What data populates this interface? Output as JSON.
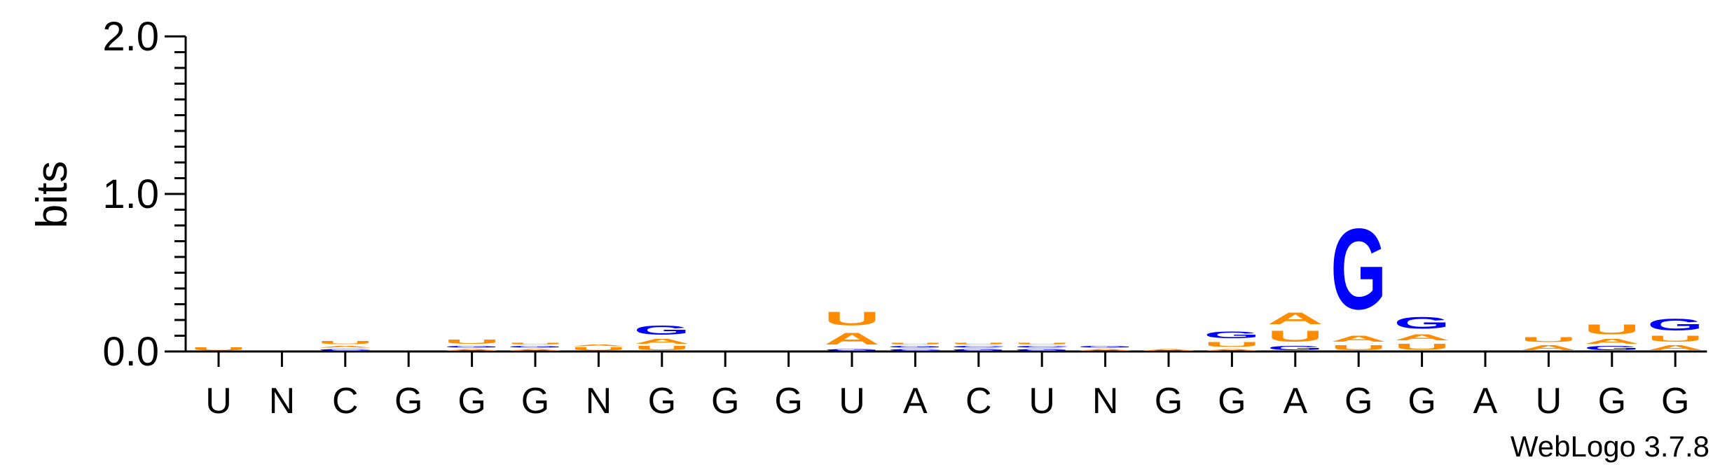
{
  "chart_data": {
    "type": "sequence-logo",
    "title": "",
    "ylabel": "bits",
    "xlabel": "",
    "ylim": [
      0,
      2.0
    ],
    "yticks": [
      {
        "value": 0.0,
        "label": "0.0"
      },
      {
        "value": 1.0,
        "label": "1.0"
      },
      {
        "value": 2.0,
        "label": "2.0"
      }
    ],
    "categories": [
      "U",
      "N",
      "C",
      "G",
      "G",
      "G",
      "N",
      "G",
      "G",
      "G",
      "U",
      "A",
      "C",
      "U",
      "N",
      "G",
      "G",
      "A",
      "G",
      "G",
      "A",
      "U",
      "G",
      "G"
    ],
    "colors": {
      "A": "#ff8c00",
      "U": "#ff8c00",
      "G": "#0000ff",
      "C": "#0000ff"
    },
    "stacks": [
      [
        [
          "U",
          0.03
        ]
      ],
      [],
      [
        [
          "C",
          0.02
        ],
        [
          "A",
          0.02
        ],
        [
          "U",
          0.03
        ]
      ],
      [],
      [
        [
          "A",
          0.02
        ],
        [
          "G",
          0.02
        ],
        [
          "U",
          0.04
        ]
      ],
      [
        [
          "A",
          0.02
        ],
        [
          "G",
          0.02
        ],
        [
          "U",
          0.02
        ]
      ],
      [
        [
          "U",
          0.03
        ],
        [
          "A",
          0.02
        ]
      ],
      [
        [
          "U",
          0.04
        ],
        [
          "A",
          0.05
        ],
        [
          "G",
          0.09
        ]
      ],
      [],
      [],
      [
        [
          "G",
          0.02
        ],
        [
          "A",
          0.12
        ],
        [
          "U",
          0.14
        ]
      ],
      [
        [
          "C",
          0.02
        ],
        [
          "G",
          0.02
        ],
        [
          "U",
          0.02
        ]
      ],
      [
        [
          "G",
          0.02
        ],
        [
          "C",
          0.02
        ],
        [
          "U",
          0.02
        ]
      ],
      [
        [
          "G",
          0.02
        ],
        [
          "C",
          0.02
        ],
        [
          "U",
          0.02
        ]
      ],
      [
        [
          "A",
          0.02
        ],
        [
          "G",
          0.02
        ]
      ],
      [
        [
          "A",
          0.02
        ]
      ],
      [
        [
          "A",
          0.02
        ],
        [
          "U",
          0.05
        ],
        [
          "G",
          0.07
        ]
      ],
      [
        [
          "G",
          0.04
        ],
        [
          "U",
          0.11
        ],
        [
          "A",
          0.12
        ]
      ],
      [
        [
          "U",
          0.05
        ],
        [
          "A",
          0.06
        ],
        [
          "G",
          0.82
        ]
      ],
      [
        [
          "U",
          0.06
        ],
        [
          "A",
          0.06
        ],
        [
          "G",
          0.12
        ]
      ],
      [],
      [
        [
          "A",
          0.05
        ],
        [
          "U",
          0.05
        ]
      ],
      [
        [
          "G",
          0.04
        ],
        [
          "A",
          0.05
        ],
        [
          "U",
          0.1
        ]
      ],
      [
        [
          "A",
          0.05
        ],
        [
          "U",
          0.06
        ],
        [
          "G",
          0.12
        ]
      ]
    ]
  },
  "credit": "WebLogo 3.7.8"
}
